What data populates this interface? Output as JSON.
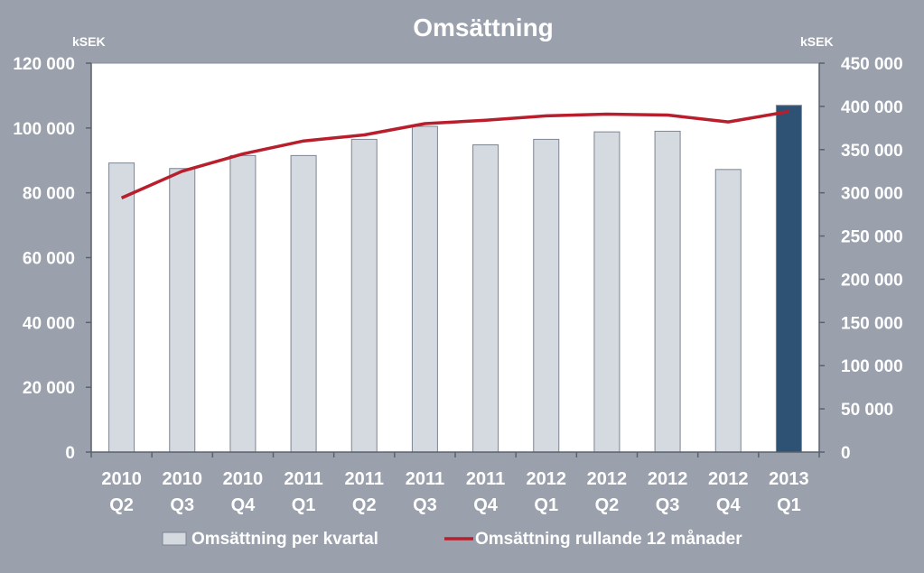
{
  "chart_data": {
    "type": "bar",
    "title": "Omsättning",
    "y_unit_left": "kSEK",
    "y_unit_right": "kSEK",
    "categories": [
      [
        "2010",
        "Q2"
      ],
      [
        "2010",
        "Q3"
      ],
      [
        "2010",
        "Q4"
      ],
      [
        "2011",
        "Q1"
      ],
      [
        "2011",
        "Q2"
      ],
      [
        "2011",
        "Q3"
      ],
      [
        "2011",
        "Q4"
      ],
      [
        "2012",
        "Q1"
      ],
      [
        "2012",
        "Q2"
      ],
      [
        "2012",
        "Q3"
      ],
      [
        "2012",
        "Q4"
      ],
      [
        "2013",
        "Q1"
      ]
    ],
    "ylim_left": [
      0,
      120000
    ],
    "ylim_right": [
      0,
      450000
    ],
    "yticks_left": [
      "0",
      "20 000",
      "40 000",
      "60 000",
      "80 000",
      "100 000",
      "120 000"
    ],
    "yticks_right": [
      "0",
      "50 000",
      "100 000",
      "150 000",
      "200 000",
      "250 000",
      "300 000",
      "350 000",
      "400 000",
      "450 000"
    ],
    "series": [
      {
        "name": "Omsättning per kvartal",
        "type": "bar",
        "axis": "left",
        "color": "#d5d9e0",
        "highlight_color": "#2e5274",
        "highlight_index": 11,
        "values": [
          89200,
          87500,
          91500,
          91500,
          96500,
          100500,
          94800,
          96500,
          98800,
          99000,
          87200,
          107000
        ]
      },
      {
        "name": "Omsättning rullande 12 månader",
        "type": "line",
        "axis": "right",
        "color": "#b81e2c",
        "values": [
          294000,
          325000,
          345000,
          360000,
          367000,
          380000,
          384000,
          389000,
          391000,
          390000,
          382000,
          394000
        ]
      }
    ],
    "grid": false,
    "legend_position": "bottom"
  }
}
